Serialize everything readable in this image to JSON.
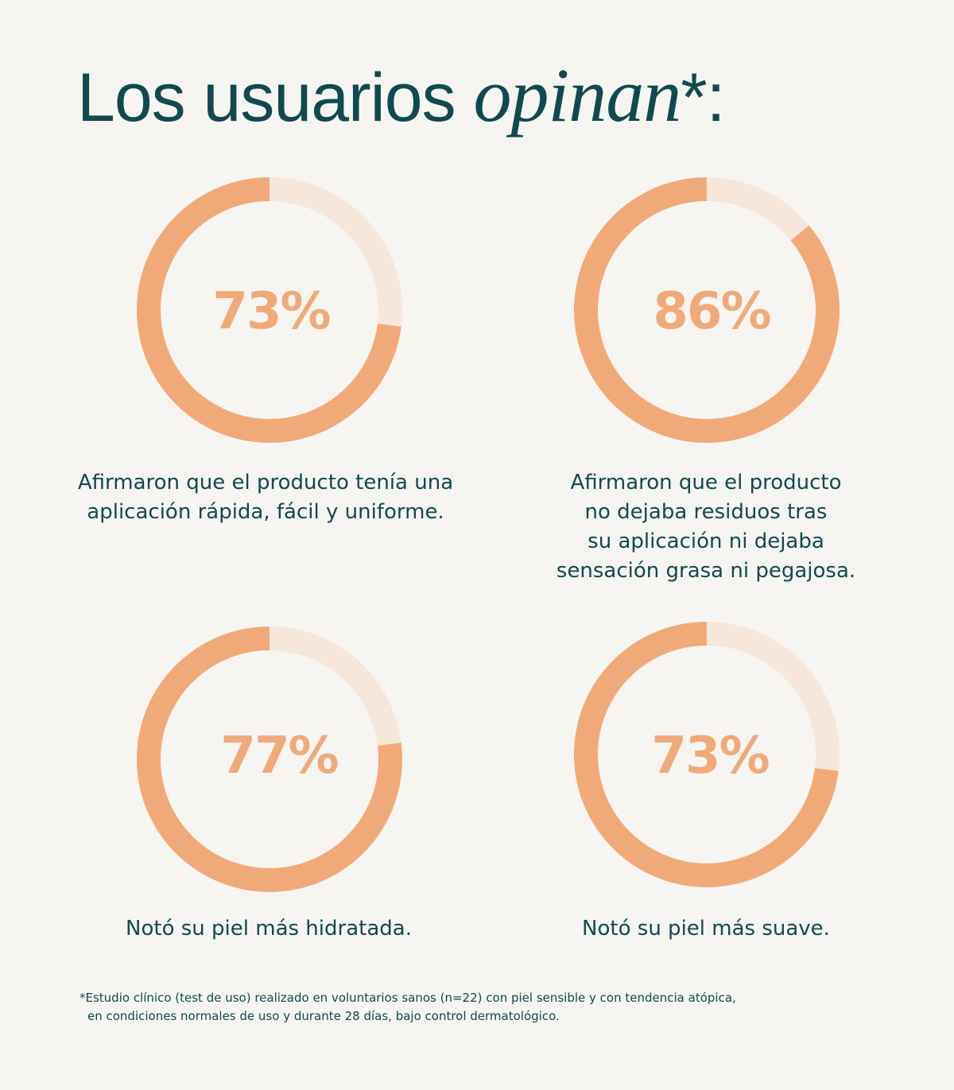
{
  "title": {
    "regular": "Los usuarios ",
    "italic": "opinan",
    "suffix": "*:"
  },
  "colors": {
    "background": "#f7f5f2",
    "ring_filled": "#f0aa7a",
    "ring_track": "#f7e6da",
    "text": "#0f4a50"
  },
  "chart_data": [
    {
      "type": "pie",
      "value": 73,
      "label": "73%",
      "caption_lines": [
        "Afirmaron que el producto tenía una",
        "aplicación rápida, fácil y uniforme."
      ]
    },
    {
      "type": "pie",
      "value": 86,
      "label": "86%",
      "caption_lines": [
        "Afirmaron que el producto",
        "no dejaba residuos tras",
        "su aplicación ni dejaba",
        "sensación grasa ni pegajosa."
      ]
    },
    {
      "type": "pie",
      "value": 77,
      "label": "77%",
      "caption_lines": [
        "Notó su piel más hidratada."
      ]
    },
    {
      "type": "pie",
      "value": 73,
      "label": "73%",
      "caption_lines": [
        "Notó su piel más suave."
      ]
    }
  ],
  "footnote": {
    "line1": "*Estudio clínico (test de uso) realizado en voluntarios sanos (n=22) con piel sensible y con tendencia atópica,",
    "line2": "en condiciones normales de uso y durante 28 días, bajo control dermatológico."
  }
}
